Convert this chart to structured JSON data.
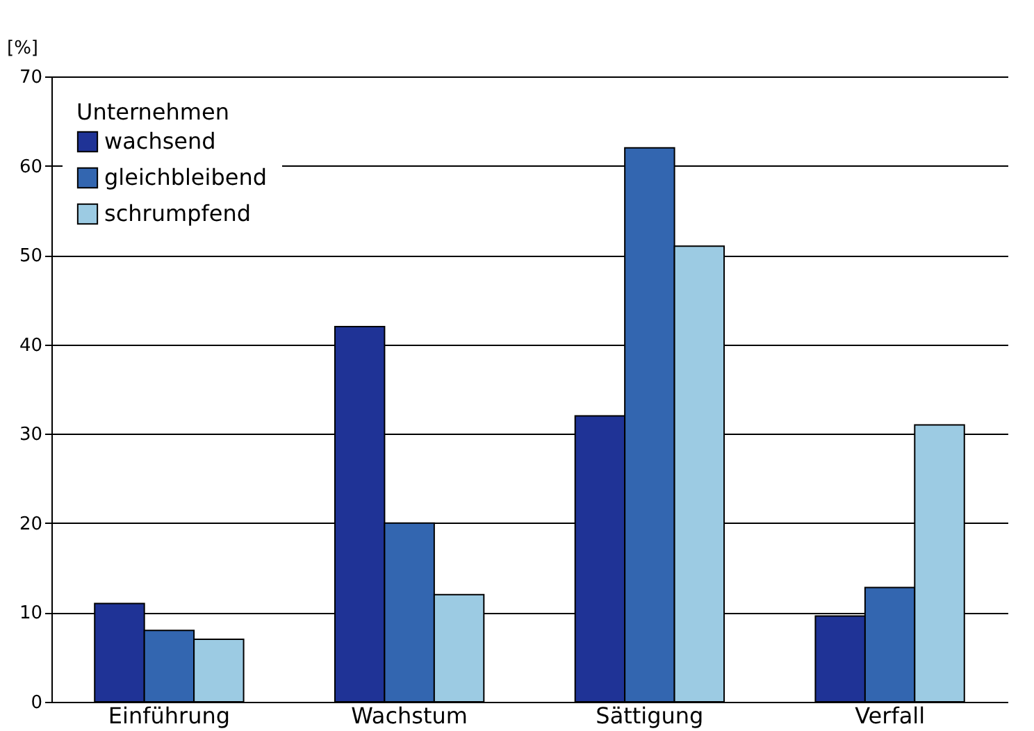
{
  "chart_data": {
    "type": "bar",
    "ylabel": "[%]",
    "legend_title": "Unternehmen",
    "categories": [
      "Einführung",
      "Wachstum",
      "Sättigung",
      "Verfall"
    ],
    "series": [
      {
        "name": "wachsend",
        "color": "#1f3396",
        "values": [
          11,
          42,
          32,
          9.6
        ]
      },
      {
        "name": "gleichbleibend",
        "color": "#3366b0",
        "values": [
          8,
          20,
          62,
          12.8
        ]
      },
      {
        "name": "schrumpfend",
        "color": "#9ccbe3",
        "values": [
          7,
          12,
          51,
          31
        ]
      }
    ],
    "ylim": [
      0,
      70
    ],
    "yticks": [
      0,
      10,
      20,
      30,
      40,
      50,
      60,
      70
    ],
    "grid": "y",
    "legend": "top left"
  }
}
